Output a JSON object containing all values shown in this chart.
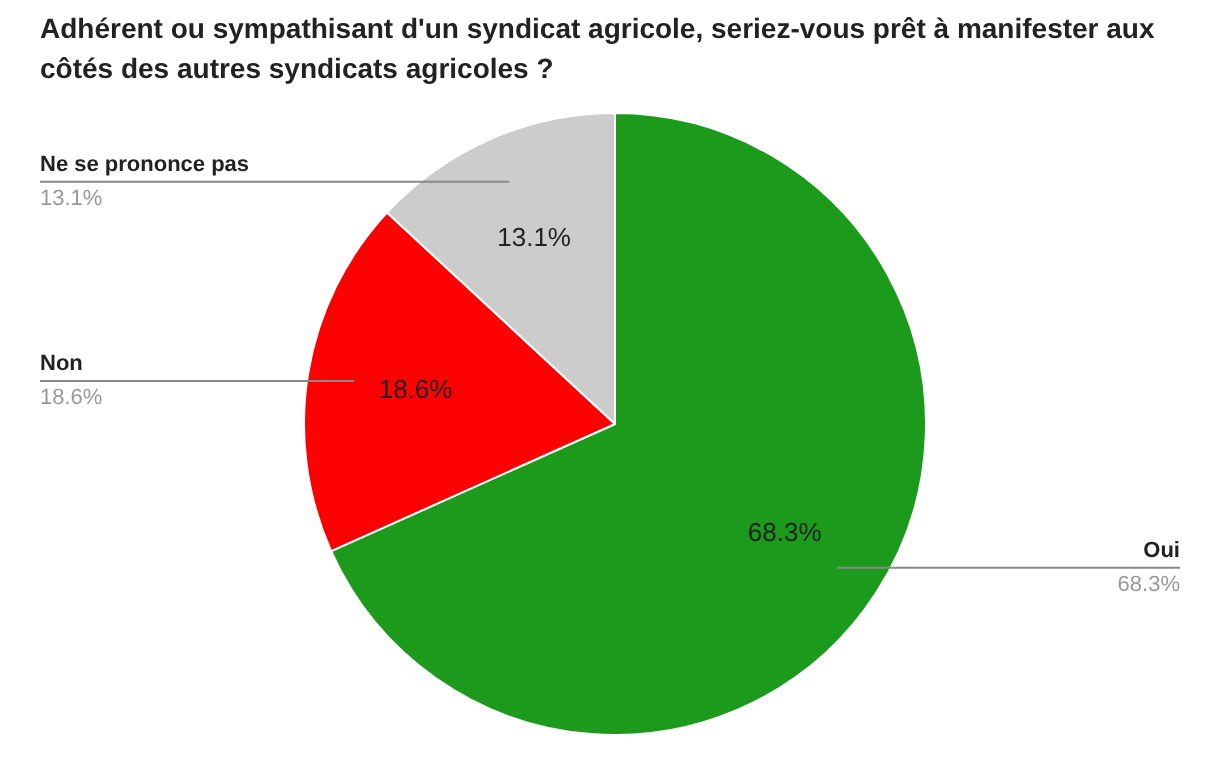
{
  "chart_data": {
    "type": "pie",
    "title": "Adhérent ou sympathisant d'un syndicat agricole, seriez-vous prêt à manifester aux côtés des autres syndicats agricoles ?",
    "categories": [
      "Oui",
      "Non",
      "Ne se prononce pas"
    ],
    "values": [
      68.3,
      18.6,
      13.1
    ],
    "colors": [
      "#1c9a1c",
      "#ff0000",
      "#cccccc"
    ],
    "value_labels": [
      "68.3%",
      "18.6%",
      "13.1%"
    ],
    "legend": false
  }
}
